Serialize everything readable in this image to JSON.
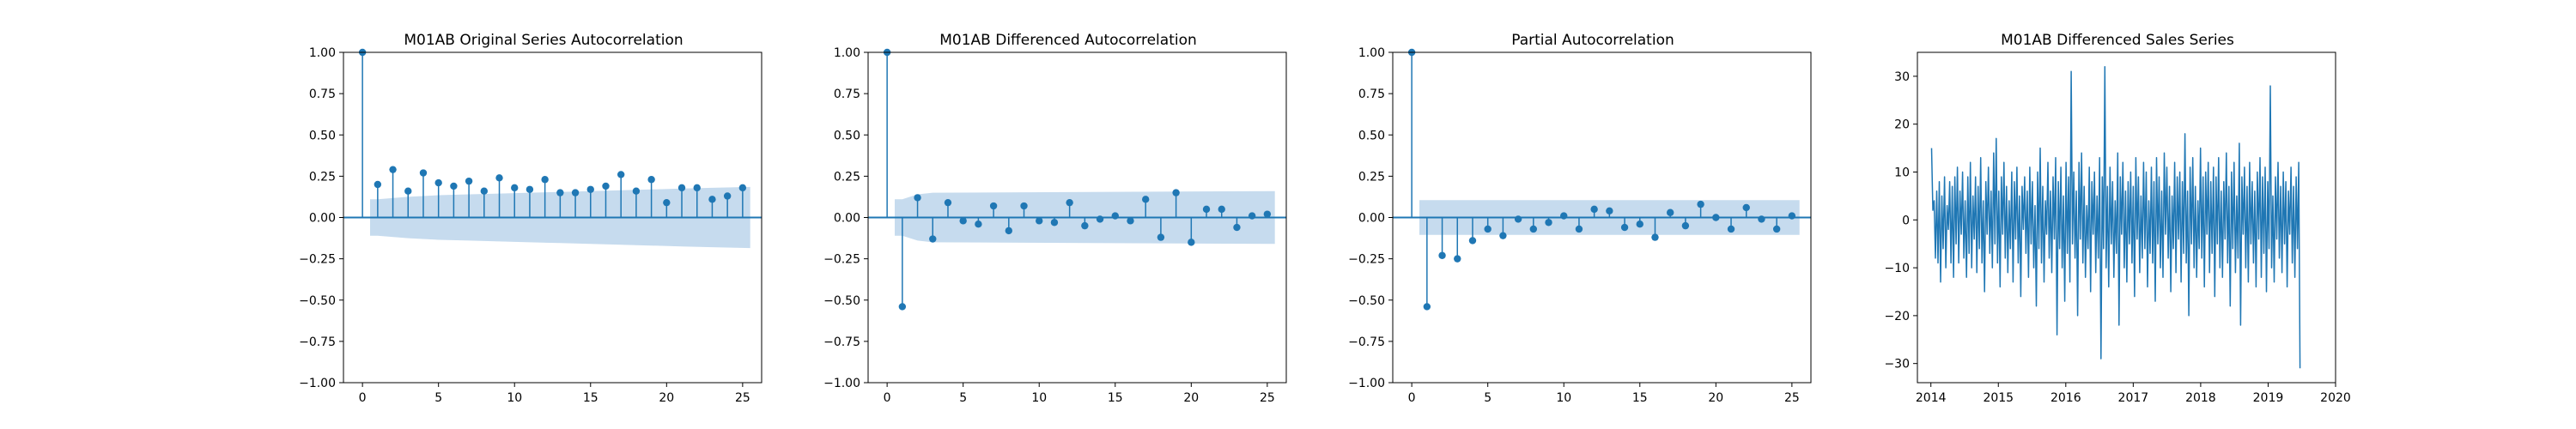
{
  "chart_data": [
    {
      "type": "stem",
      "title": "M01AB Original Series Autocorrelation",
      "xlabel": "",
      "ylabel": "",
      "xlim": [
        -1.25,
        26.25
      ],
      "ylim": [
        -1.0,
        1.0
      ],
      "x_ticks": [
        0,
        5,
        10,
        15,
        20,
        25
      ],
      "y_ticks": [
        -1.0,
        -0.75,
        -0.5,
        -0.25,
        0.0,
        0.25,
        0.5,
        0.75,
        1.0
      ],
      "y_tick_labels": [
        "−1.00",
        "−0.75",
        "−0.50",
        "−0.25",
        "0.00",
        "0.25",
        "0.50",
        "0.75",
        "1.00"
      ],
      "x": [
        0,
        1,
        2,
        3,
        4,
        5,
        6,
        7,
        8,
        9,
        10,
        11,
        12,
        13,
        14,
        15,
        16,
        17,
        18,
        19,
        20,
        21,
        22,
        23,
        24,
        25
      ],
      "values": [
        1.0,
        0.2,
        0.29,
        0.16,
        0.27,
        0.21,
        0.19,
        0.22,
        0.16,
        0.24,
        0.18,
        0.17,
        0.23,
        0.15,
        0.15,
        0.17,
        0.19,
        0.26,
        0.16,
        0.23,
        0.09,
        0.18,
        0.18,
        0.11,
        0.13,
        0.18
      ],
      "confint_band": {
        "x": [
          0.5,
          1,
          3,
          5,
          7,
          9,
          11,
          13,
          15,
          17,
          19,
          21,
          23,
          25.5
        ],
        "upper": [
          0.11,
          0.11,
          0.125,
          0.135,
          0.14,
          0.145,
          0.15,
          0.155,
          0.16,
          0.165,
          0.17,
          0.175,
          0.18,
          0.185
        ]
      }
    },
    {
      "type": "stem",
      "title": "M01AB Differenced Autocorrelation",
      "xlabel": "",
      "ylabel": "",
      "xlim": [
        -1.25,
        26.25
      ],
      "ylim": [
        -1.0,
        1.0
      ],
      "x_ticks": [
        0,
        5,
        10,
        15,
        20,
        25
      ],
      "y_ticks": [
        -1.0,
        -0.75,
        -0.5,
        -0.25,
        0.0,
        0.25,
        0.5,
        0.75,
        1.0
      ],
      "y_tick_labels": [
        "−1.00",
        "−0.75",
        "−0.50",
        "−0.25",
        "0.00",
        "0.25",
        "0.50",
        "0.75",
        "1.00"
      ],
      "x": [
        0,
        1,
        2,
        3,
        4,
        5,
        6,
        7,
        8,
        9,
        10,
        11,
        12,
        13,
        14,
        15,
        16,
        17,
        18,
        19,
        20,
        21,
        22,
        23,
        24,
        25
      ],
      "values": [
        1.0,
        -0.54,
        0.12,
        -0.13,
        0.09,
        -0.02,
        -0.04,
        0.07,
        -0.08,
        0.07,
        -0.02,
        -0.03,
        0.09,
        -0.05,
        -0.01,
        0.01,
        -0.02,
        0.11,
        -0.12,
        0.15,
        -0.15,
        0.05,
        0.05,
        -0.06,
        0.01,
        0.02
      ],
      "confint_band": {
        "x": [
          0.5,
          1,
          2,
          3,
          25.5
        ],
        "upper": [
          0.11,
          0.11,
          0.14,
          0.15,
          0.16
        ]
      }
    },
    {
      "type": "stem",
      "title": "Partial Autocorrelation",
      "xlabel": "",
      "ylabel": "",
      "xlim": [
        -1.25,
        26.25
      ],
      "ylim": [
        -1.0,
        1.0
      ],
      "x_ticks": [
        0,
        5,
        10,
        15,
        20,
        25
      ],
      "y_ticks": [
        -1.0,
        -0.75,
        -0.5,
        -0.25,
        0.0,
        0.25,
        0.5,
        0.75,
        1.0
      ],
      "y_tick_labels": [
        "−1.00",
        "−0.75",
        "−0.50",
        "−0.25",
        "0.00",
        "0.25",
        "0.50",
        "0.75",
        "1.00"
      ],
      "x": [
        0,
        1,
        2,
        3,
        4,
        5,
        6,
        7,
        8,
        9,
        10,
        11,
        12,
        13,
        14,
        15,
        16,
        17,
        18,
        19,
        20,
        21,
        22,
        23,
        24,
        25
      ],
      "values": [
        1.0,
        -0.54,
        -0.23,
        -0.25,
        -0.14,
        -0.07,
        -0.11,
        -0.01,
        -0.07,
        -0.03,
        0.01,
        -0.07,
        0.05,
        0.04,
        -0.06,
        -0.04,
        -0.12,
        0.03,
        -0.05,
        0.08,
        0.0,
        -0.07,
        0.06,
        -0.01,
        -0.07,
        0.01
      ],
      "confint_band": {
        "x": [
          0.5,
          25.5
        ],
        "upper": [
          0.105,
          0.105
        ]
      }
    },
    {
      "type": "line",
      "title": "M01AB Differenced Sales Series",
      "xlabel": "",
      "ylabel": "",
      "xlim": [
        2013.8,
        2020.0
      ],
      "ylim": [
        -34,
        35
      ],
      "x_ticks": [
        2014,
        2015,
        2016,
        2017,
        2018,
        2019,
        2020
      ],
      "x_tick_labels": [
        "2014",
        "2015",
        "2016",
        "2017",
        "2018",
        "2019",
        "2020"
      ],
      "y_ticks": [
        -30,
        -20,
        -10,
        0,
        10,
        20,
        30
      ],
      "y_tick_labels": [
        "−30",
        "−20",
        "−10",
        "0",
        "10",
        "20",
        "30"
      ],
      "series": [
        {
          "start_year": 2014.01,
          "step_years": 0.01917,
          "values": [
            15,
            2,
            4,
            -8,
            6,
            -9,
            8,
            -13,
            5,
            -6,
            9,
            -10,
            3,
            -2,
            8,
            -9,
            7,
            -12,
            9,
            -5,
            11,
            -9,
            6,
            -3,
            10,
            -8,
            4,
            -12,
            9,
            -7,
            12,
            -10,
            5,
            -4,
            9,
            -11,
            7,
            -6,
            13,
            -9,
            4,
            -15,
            8,
            -3,
            11,
            -7,
            6,
            -10,
            14,
            -5,
            17,
            -9,
            6,
            -14,
            9,
            -3,
            12,
            -8,
            7,
            -11,
            4,
            -6,
            10,
            -13,
            8,
            -4,
            11,
            -9,
            5,
            -16,
            7,
            -2,
            9,
            -7,
            6,
            -12,
            11,
            -5,
            8,
            -10,
            3,
            -18,
            10,
            -6,
            15,
            -9,
            7,
            -13,
            4,
            -3,
            12,
            -8,
            6,
            -11,
            9,
            -4,
            13,
            -24,
            8,
            -6,
            11,
            -10,
            5,
            -17,
            12,
            -7,
            9,
            -13,
            31,
            -5,
            10,
            -8,
            6,
            -20,
            12,
            -4,
            14,
            -9,
            7,
            -12,
            3,
            -6,
            11,
            -15,
            8,
            -3,
            10,
            -11,
            5,
            -8,
            13,
            -29,
            9,
            -6,
            32,
            -10,
            7,
            -14,
            11,
            -5,
            8,
            -12,
            4,
            -7,
            14,
            -22,
            9,
            -3,
            12,
            -10,
            6,
            -13,
            8,
            -5,
            10,
            -9,
            7,
            -16,
            13,
            -4,
            9,
            -11,
            5,
            -8,
            12,
            -6,
            10,
            -14,
            4,
            -7,
            11,
            -9,
            8,
            -17,
            13,
            -5,
            9,
            -10,
            6,
            -12,
            14,
            -3,
            11,
            -8,
            7,
            -15,
            5,
            -6,
            12,
            -11,
            9,
            -4,
            10,
            -13,
            8,
            -7,
            18,
            -9,
            6,
            -20,
            11,
            -5,
            13,
            -10,
            7,
            -12,
            4,
            -6,
            15,
            -8,
            9,
            -14,
            10,
            -3,
            12,
            -11,
            8,
            -7,
            11,
            -16,
            9,
            -5,
            13,
            -10,
            6,
            -12,
            8,
            -4,
            14,
            -9,
            7,
            -18,
            10,
            -6,
            12,
            -11,
            5,
            -8,
            16,
            -22,
            9,
            -3,
            11,
            -10,
            7,
            -13,
            12,
            -5,
            8,
            -9,
            6,
            -14,
            10,
            -4,
            13,
            -12,
            9,
            -7,
            11,
            -15,
            8,
            -6,
            28,
            -10,
            5,
            -13,
            9,
            -4,
            12,
            -8,
            7,
            -11,
            10,
            -5,
            8,
            -14,
            6,
            -3,
            11,
            -9,
            7,
            -12,
            9,
            -6,
            12,
            -31
          ]
        }
      ]
    }
  ],
  "colors": {
    "series": "#1f77b4",
    "band": "#c6dbee",
    "axis": "#000000"
  }
}
